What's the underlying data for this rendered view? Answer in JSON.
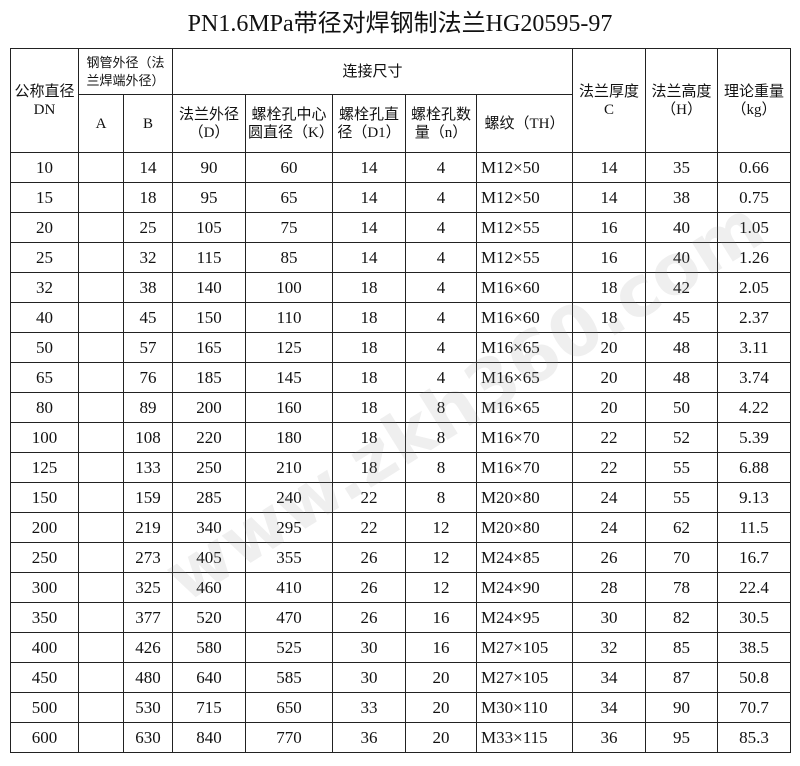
{
  "title": "PN1.6MPa带径对焊钢制法兰HG20595-97",
  "watermark": "www.zkh360.com",
  "header": {
    "dn": "公称直径DN",
    "pipe": "钢管外径（法兰焊端外径）",
    "connection": "连接尺寸",
    "c": "法兰厚度C",
    "h": "法兰高度（H）",
    "weight": "理论重量（kg）",
    "a": "A",
    "b": "B",
    "d": "法兰外径（D）",
    "k": "螺栓孔中心圆直径（K）",
    "d1": "螺栓孔直径（D1）",
    "n": "螺栓孔数量（n）",
    "th": "螺纹（TH）"
  },
  "table": {
    "rows": [
      [
        "10",
        "14",
        "90",
        "60",
        "14",
        "4",
        "M12×50",
        "14",
        "35",
        "0.66"
      ],
      [
        "15",
        "18",
        "95",
        "65",
        "14",
        "4",
        "M12×50",
        "14",
        "38",
        "0.75"
      ],
      [
        "20",
        "25",
        "105",
        "75",
        "14",
        "4",
        "M12×55",
        "16",
        "40",
        "1.05"
      ],
      [
        "25",
        "32",
        "115",
        "85",
        "14",
        "4",
        "M12×55",
        "16",
        "40",
        "1.26"
      ],
      [
        "32",
        "38",
        "140",
        "100",
        "18",
        "4",
        "M16×60",
        "18",
        "42",
        "2.05"
      ],
      [
        "40",
        "45",
        "150",
        "110",
        "18",
        "4",
        "M16×60",
        "18",
        "45",
        "2.37"
      ],
      [
        "50",
        "57",
        "165",
        "125",
        "18",
        "4",
        "M16×65",
        "20",
        "48",
        "3.11"
      ],
      [
        "65",
        "76",
        "185",
        "145",
        "18",
        "4",
        "M16×65",
        "20",
        "48",
        "3.74"
      ],
      [
        "80",
        "89",
        "200",
        "160",
        "18",
        "8",
        "M16×65",
        "20",
        "50",
        "4.22"
      ],
      [
        "100",
        "108",
        "220",
        "180",
        "18",
        "8",
        "M16×70",
        "22",
        "52",
        "5.39"
      ],
      [
        "125",
        "133",
        "250",
        "210",
        "18",
        "8",
        "M16×70",
        "22",
        "55",
        "6.88"
      ],
      [
        "150",
        "159",
        "285",
        "240",
        "22",
        "8",
        "M20×80",
        "24",
        "55",
        "9.13"
      ],
      [
        "200",
        "219",
        "340",
        "295",
        "22",
        "12",
        "M20×80",
        "24",
        "62",
        "11.5"
      ],
      [
        "250",
        "273",
        "405",
        "355",
        "26",
        "12",
        "M24×85",
        "26",
        "70",
        "16.7"
      ],
      [
        "300",
        "325",
        "460",
        "410",
        "26",
        "12",
        "M24×90",
        "28",
        "78",
        "22.4"
      ],
      [
        "350",
        "377",
        "520",
        "470",
        "26",
        "16",
        "M24×95",
        "30",
        "82",
        "30.5"
      ],
      [
        "400",
        "426",
        "580",
        "525",
        "30",
        "16",
        "M27×105",
        "32",
        "85",
        "38.5"
      ],
      [
        "450",
        "480",
        "640",
        "585",
        "30",
        "20",
        "M27×105",
        "34",
        "87",
        "50.8"
      ],
      [
        "500",
        "530",
        "715",
        "650",
        "33",
        "20",
        "M30×110",
        "34",
        "90",
        "70.7"
      ],
      [
        "600",
        "630",
        "840",
        "770",
        "36",
        "20",
        "M33×115",
        "36",
        "95",
        "85.3"
      ]
    ]
  }
}
